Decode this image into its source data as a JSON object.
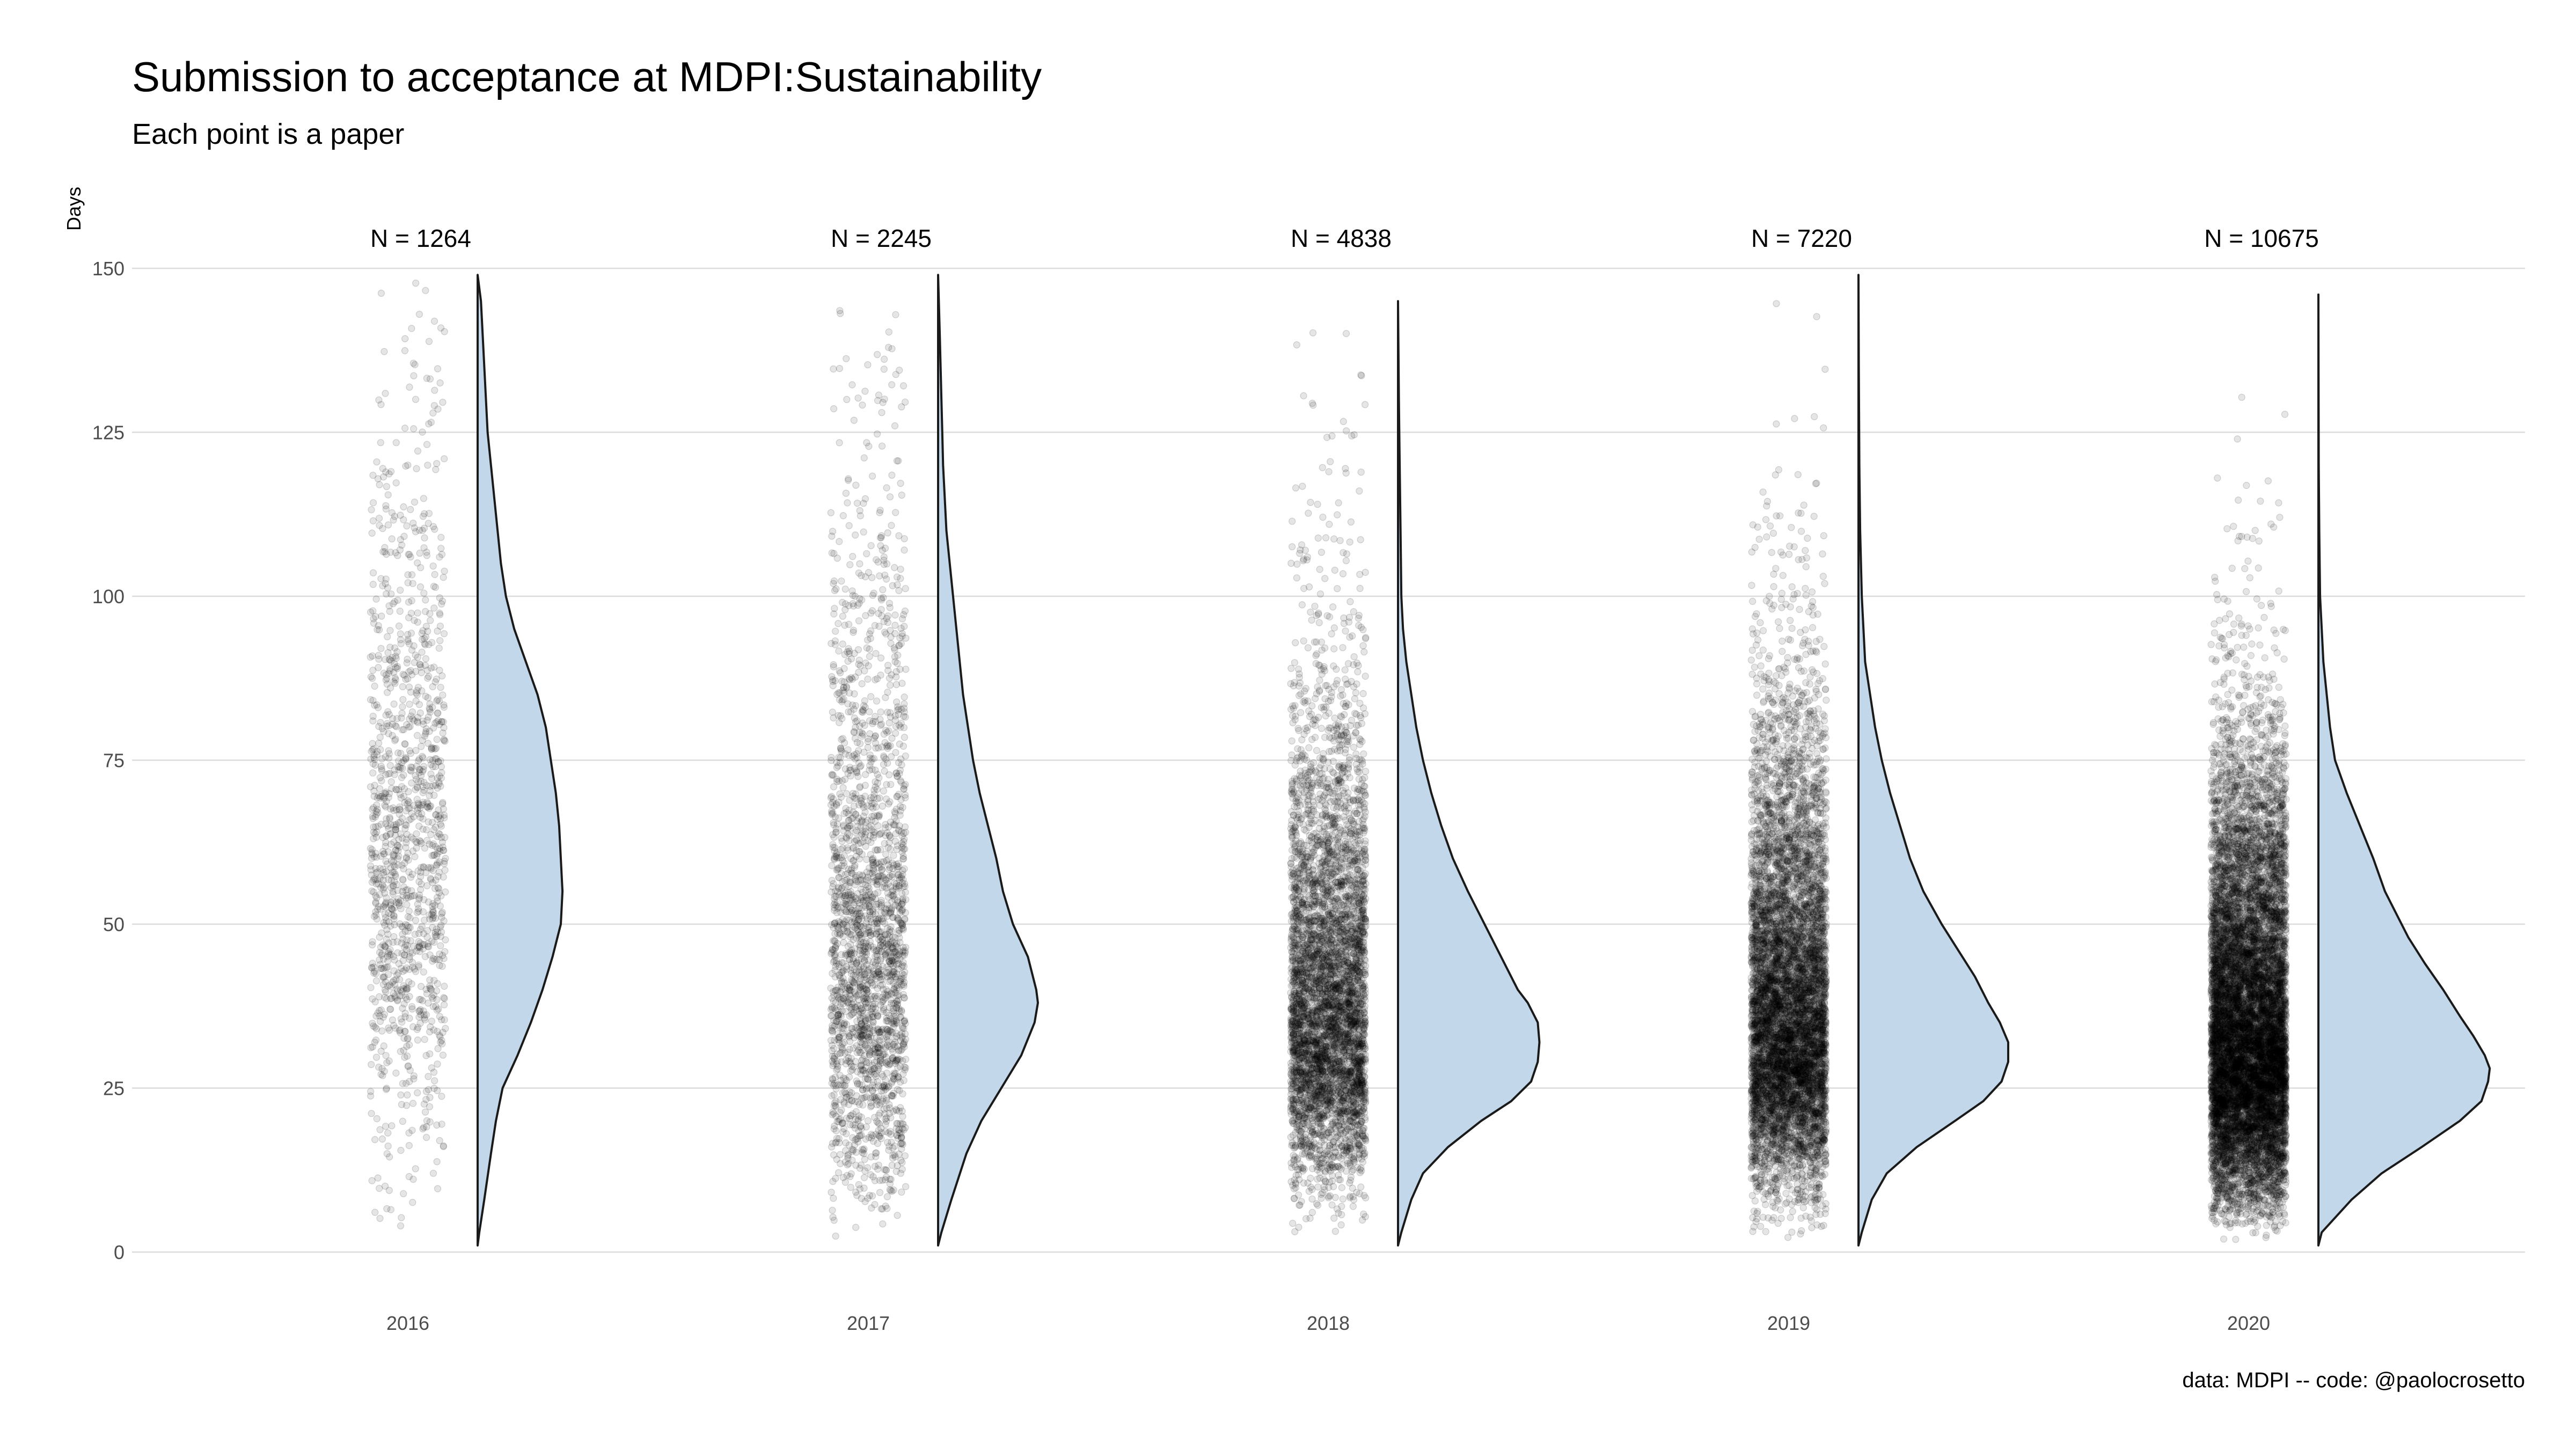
{
  "chart_data": {
    "type": "raincloud",
    "title": "Submission to acceptance at MDPI:Sustainability",
    "subtitle": "Each point is a paper",
    "ylabel": "Days",
    "caption": "data: MDPI -- code: @paolocrosetto",
    "ylim": [
      0,
      150
    ],
    "yticks": [
      0,
      25,
      50,
      75,
      100,
      125,
      150
    ],
    "grid": true,
    "colors": {
      "fill": "#c3d7eb",
      "outline": "#1a1a1a",
      "points": "#000000",
      "grid": "#dcdcdc"
    },
    "categories": [
      "2016",
      "2017",
      "2018",
      "2019",
      "2020"
    ],
    "series": [
      {
        "category": "2016",
        "n_label": "N = 1264",
        "n": 1264,
        "max_days": 149,
        "density": [
          [
            1,
            0.0
          ],
          [
            3,
            0.01
          ],
          [
            8,
            0.04
          ],
          [
            15,
            0.08
          ],
          [
            20,
            0.11
          ],
          [
            25,
            0.15
          ],
          [
            30,
            0.24
          ],
          [
            35,
            0.32
          ],
          [
            40,
            0.39
          ],
          [
            45,
            0.45
          ],
          [
            50,
            0.5
          ],
          [
            55,
            0.51
          ],
          [
            60,
            0.5
          ],
          [
            65,
            0.49
          ],
          [
            70,
            0.47
          ],
          [
            75,
            0.44
          ],
          [
            80,
            0.41
          ],
          [
            85,
            0.36
          ],
          [
            90,
            0.29
          ],
          [
            95,
            0.22
          ],
          [
            100,
            0.17
          ],
          [
            105,
            0.14
          ],
          [
            110,
            0.12
          ],
          [
            115,
            0.1
          ],
          [
            120,
            0.08
          ],
          [
            125,
            0.06
          ],
          [
            130,
            0.05
          ],
          [
            135,
            0.04
          ],
          [
            140,
            0.03
          ],
          [
            145,
            0.02
          ],
          [
            149,
            0.0
          ]
        ]
      },
      {
        "category": "2017",
        "n_label": "N = 2245",
        "n": 2245,
        "max_days": 149,
        "density": [
          [
            1,
            0.0
          ],
          [
            3,
            0.02
          ],
          [
            8,
            0.08
          ],
          [
            15,
            0.17
          ],
          [
            20,
            0.26
          ],
          [
            25,
            0.38
          ],
          [
            30,
            0.5
          ],
          [
            35,
            0.58
          ],
          [
            38,
            0.6
          ],
          [
            40,
            0.59
          ],
          [
            45,
            0.54
          ],
          [
            50,
            0.45
          ],
          [
            55,
            0.39
          ],
          [
            60,
            0.35
          ],
          [
            65,
            0.3
          ],
          [
            70,
            0.25
          ],
          [
            75,
            0.21
          ],
          [
            80,
            0.18
          ],
          [
            85,
            0.15
          ],
          [
            90,
            0.13
          ],
          [
            95,
            0.11
          ],
          [
            100,
            0.09
          ],
          [
            105,
            0.07
          ],
          [
            110,
            0.05
          ],
          [
            115,
            0.04
          ],
          [
            120,
            0.03
          ],
          [
            125,
            0.025
          ],
          [
            130,
            0.02
          ],
          [
            140,
            0.01
          ],
          [
            149,
            0.0
          ]
        ]
      },
      {
        "category": "2018",
        "n_label": "N = 4838",
        "n": 4838,
        "max_days": 145,
        "density": [
          [
            1,
            0.0
          ],
          [
            3,
            0.02
          ],
          [
            8,
            0.08
          ],
          [
            12,
            0.15
          ],
          [
            16,
            0.3
          ],
          [
            20,
            0.5
          ],
          [
            23,
            0.68
          ],
          [
            26,
            0.8
          ],
          [
            29,
            0.84
          ],
          [
            32,
            0.85
          ],
          [
            35,
            0.84
          ],
          [
            38,
            0.78
          ],
          [
            40,
            0.72
          ],
          [
            45,
            0.62
          ],
          [
            50,
            0.52
          ],
          [
            55,
            0.42
          ],
          [
            60,
            0.33
          ],
          [
            65,
            0.26
          ],
          [
            70,
            0.2
          ],
          [
            75,
            0.15
          ],
          [
            80,
            0.11
          ],
          [
            85,
            0.08
          ],
          [
            90,
            0.05
          ],
          [
            95,
            0.03
          ],
          [
            100,
            0.02
          ],
          [
            110,
            0.015
          ],
          [
            120,
            0.01
          ],
          [
            130,
            0.005
          ],
          [
            145,
            0.0
          ]
        ]
      },
      {
        "category": "2019",
        "n_label": "N = 7220",
        "n": 7220,
        "max_days": 149,
        "density": [
          [
            1,
            0.0
          ],
          [
            3,
            0.02
          ],
          [
            8,
            0.08
          ],
          [
            12,
            0.17
          ],
          [
            16,
            0.35
          ],
          [
            20,
            0.58
          ],
          [
            23,
            0.75
          ],
          [
            26,
            0.86
          ],
          [
            29,
            0.9
          ],
          [
            32,
            0.9
          ],
          [
            35,
            0.85
          ],
          [
            38,
            0.78
          ],
          [
            42,
            0.7
          ],
          [
            46,
            0.6
          ],
          [
            50,
            0.5
          ],
          [
            55,
            0.39
          ],
          [
            60,
            0.31
          ],
          [
            65,
            0.25
          ],
          [
            70,
            0.19
          ],
          [
            75,
            0.14
          ],
          [
            80,
            0.1
          ],
          [
            85,
            0.07
          ],
          [
            90,
            0.04
          ],
          [
            95,
            0.03
          ],
          [
            100,
            0.02
          ],
          [
            110,
            0.01
          ],
          [
            120,
            0.005
          ],
          [
            135,
            0.002
          ],
          [
            149,
            0.0
          ]
        ]
      },
      {
        "category": "2020",
        "n_label": "N = 10675",
        "n": 10675,
        "max_days": 146,
        "density": [
          [
            1,
            0.0
          ],
          [
            3,
            0.02
          ],
          [
            8,
            0.2
          ],
          [
            12,
            0.38
          ],
          [
            16,
            0.62
          ],
          [
            20,
            0.85
          ],
          [
            23,
            0.98
          ],
          [
            26,
            1.02
          ],
          [
            28,
            1.03
          ],
          [
            30,
            1.0
          ],
          [
            33,
            0.93
          ],
          [
            36,
            0.85
          ],
          [
            40,
            0.75
          ],
          [
            44,
            0.64
          ],
          [
            48,
            0.54
          ],
          [
            52,
            0.46
          ],
          [
            55,
            0.4
          ],
          [
            60,
            0.33
          ],
          [
            65,
            0.25
          ],
          [
            70,
            0.17
          ],
          [
            75,
            0.1
          ],
          [
            80,
            0.07
          ],
          [
            85,
            0.05
          ],
          [
            90,
            0.03
          ],
          [
            95,
            0.02
          ],
          [
            100,
            0.01
          ],
          [
            110,
            0.005
          ],
          [
            120,
            0.002
          ],
          [
            146,
            0.0
          ]
        ]
      }
    ]
  }
}
